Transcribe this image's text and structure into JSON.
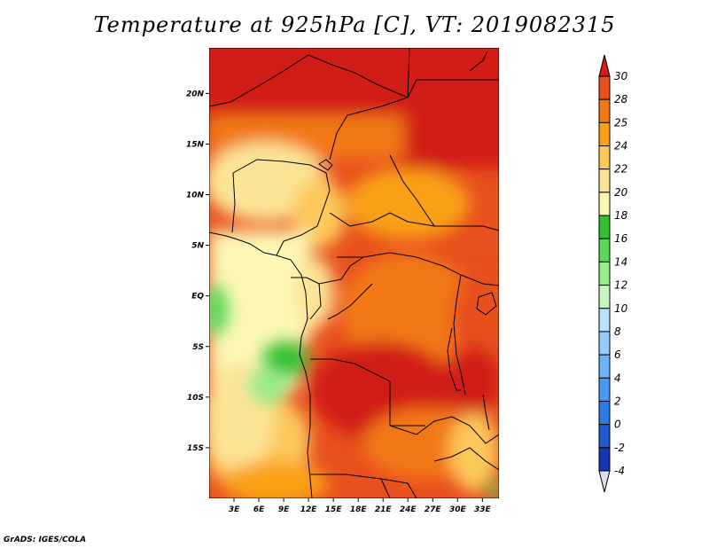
{
  "title": "Temperature at 925hPa [C], VT: 2019082315",
  "footer": "GrADS: IGES/COLA",
  "map": {
    "lon_range": [
      0,
      35
    ],
    "lat_range": [
      -20,
      24.5
    ],
    "lon_ticks": [
      {
        "value": 3,
        "label": "3E"
      },
      {
        "value": 6,
        "label": "6E"
      },
      {
        "value": 9,
        "label": "9E"
      },
      {
        "value": 12,
        "label": "12E"
      },
      {
        "value": 15,
        "label": "15E"
      },
      {
        "value": 18,
        "label": "18E"
      },
      {
        "value": 21,
        "label": "21E"
      },
      {
        "value": 24,
        "label": "24E"
      },
      {
        "value": 27,
        "label": "27E"
      },
      {
        "value": 30,
        "label": "30E"
      },
      {
        "value": 33,
        "label": "33E"
      }
    ],
    "lat_ticks": [
      {
        "value": 20,
        "label": "20N"
      },
      {
        "value": 15,
        "label": "15N"
      },
      {
        "value": 10,
        "label": "10N"
      },
      {
        "value": 5,
        "label": "5N"
      },
      {
        "value": 0,
        "label": "EQ"
      },
      {
        "value": -5,
        "label": "5S"
      },
      {
        "value": -10,
        "label": "10S"
      },
      {
        "value": -15,
        "label": "15S"
      }
    ]
  },
  "colorbar": {
    "labels": [
      "-4",
      "-2",
      "0",
      "2",
      "4",
      "6",
      "8",
      "10",
      "12",
      "14",
      "16",
      "18",
      "20",
      "22",
      "24",
      "25",
      "28",
      "30"
    ],
    "colors": [
      "#0c1478",
      "#1438b4",
      "#1e5ad2",
      "#2c7ce8",
      "#4a9af2",
      "#6eb4f8",
      "#96ccfc",
      "#bce2fe",
      "#c8f5c0",
      "#96ec88",
      "#58d858",
      "#32c032",
      "#fcf8b4",
      "#fce496",
      "#fcc85a",
      "#faa014",
      "#f27814",
      "#e8501e",
      "#d21e14"
    ]
  }
}
